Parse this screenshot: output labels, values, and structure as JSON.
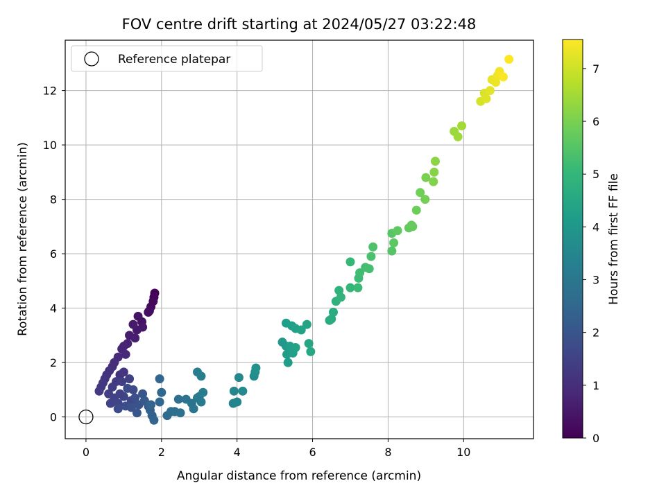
{
  "chart_data": {
    "type": "scatter",
    "title": "FOV centre drift starting at 2024/05/27 03:22:48",
    "xlabel": "Angular distance from reference (arcmin)",
    "ylabel": "Rotation from reference (arcmin)",
    "xlim": [
      -0.55,
      11.85
    ],
    "ylim": [
      -0.8,
      13.85
    ],
    "xticks": [
      0,
      2,
      4,
      6,
      8,
      10
    ],
    "yticks": [
      0,
      2,
      4,
      6,
      8,
      10,
      12
    ],
    "grid": true,
    "legend": {
      "placement": "top-left",
      "entries": [
        "Reference platepar"
      ]
    },
    "reference_point": {
      "x": 0,
      "y": 0,
      "label": "Reference platepar"
    },
    "colorbar": {
      "label": "Hours from first FF file",
      "range": [
        0,
        7.55
      ],
      "ticks": [
        0,
        1,
        2,
        3,
        4,
        5,
        6,
        7
      ],
      "colormap": "viridis",
      "colors": [
        "#440154",
        "#482878",
        "#3e4989",
        "#31688e",
        "#26828e",
        "#1f9e89",
        "#35b779",
        "#6ece58",
        "#b5de2b",
        "#fde725"
      ]
    },
    "series": [
      {
        "points": [
          [
            1.82,
            4.55,
            0.05
          ],
          [
            1.8,
            4.4,
            0.1
          ],
          [
            1.78,
            4.25,
            0.15
          ],
          [
            1.72,
            4.05,
            0.2
          ],
          [
            1.68,
            3.9,
            0.25
          ],
          [
            1.65,
            3.85,
            0.3
          ],
          [
            1.48,
            3.5,
            0.35
          ],
          [
            1.38,
            3.7,
            0.4
          ],
          [
            1.5,
            3.3,
            0.45
          ],
          [
            1.35,
            3.2,
            0.5
          ],
          [
            1.25,
            3.4,
            0.55
          ],
          [
            1.15,
            3.0,
            0.6
          ],
          [
            1.3,
            2.9,
            0.65
          ],
          [
            1.1,
            2.7,
            0.7
          ],
          [
            1.0,
            2.6,
            0.75
          ],
          [
            0.95,
            2.5,
            0.8
          ],
          [
            1.05,
            2.3,
            0.85
          ],
          [
            0.85,
            2.2,
            0.9
          ],
          [
            0.75,
            2.0,
            0.95
          ],
          [
            0.7,
            1.85,
            1.0
          ],
          [
            0.62,
            1.7,
            1.05
          ],
          [
            0.55,
            1.55,
            1.1
          ],
          [
            0.5,
            1.4,
            1.15
          ],
          [
            0.45,
            1.25,
            1.2
          ],
          [
            0.4,
            1.1,
            1.25
          ],
          [
            0.35,
            0.95,
            1.3
          ],
          [
            0.9,
            1.55,
            1.1
          ],
          [
            1.0,
            1.65,
            1.2
          ],
          [
            0.8,
            1.3,
            1.3
          ],
          [
            0.7,
            1.1,
            1.35
          ],
          [
            0.95,
            1.3,
            1.4
          ],
          [
            1.15,
            1.4,
            1.45
          ],
          [
            0.6,
            0.85,
            1.4
          ],
          [
            0.75,
            0.7,
            1.5
          ],
          [
            0.65,
            0.5,
            1.55
          ],
          [
            0.85,
            0.5,
            1.6
          ],
          [
            1.0,
            0.75,
            1.6
          ],
          [
            1.2,
            0.6,
            1.65
          ],
          [
            1.25,
            1.0,
            1.7
          ],
          [
            0.85,
            0.3,
            1.75
          ],
          [
            1.05,
            0.4,
            1.8
          ],
          [
            1.3,
            0.7,
            1.85
          ],
          [
            1.2,
            0.35,
            1.9
          ],
          [
            1.4,
            0.45,
            1.95
          ],
          [
            1.35,
            0.15,
            2.0
          ],
          [
            0.9,
            0.85,
            1.5
          ],
          [
            1.1,
            1.05,
            1.75
          ],
          [
            1.5,
            0.85,
            2.0
          ],
          [
            1.55,
            0.6,
            2.1
          ],
          [
            1.65,
            0.4,
            2.2
          ],
          [
            1.7,
            0.25,
            2.3
          ],
          [
            1.75,
            0.05,
            2.35
          ],
          [
            1.8,
            -0.12,
            2.4
          ],
          [
            1.95,
            1.4,
            2.45
          ],
          [
            1.95,
            0.55,
            2.5
          ],
          [
            2.0,
            0.9,
            2.55
          ],
          [
            1.72,
            0.45,
            2.4
          ],
          [
            2.15,
            0.05,
            2.6
          ],
          [
            2.25,
            0.2,
            2.65
          ],
          [
            2.35,
            0.2,
            2.7
          ],
          [
            2.45,
            0.65,
            2.75
          ],
          [
            2.5,
            0.15,
            2.8
          ],
          [
            2.65,
            0.65,
            2.85
          ],
          [
            2.8,
            0.5,
            2.9
          ],
          [
            2.85,
            0.3,
            2.95
          ],
          [
            2.95,
            0.7,
            3.0
          ],
          [
            3.0,
            0.75,
            3.05
          ],
          [
            3.05,
            0.55,
            3.1
          ],
          [
            3.1,
            0.9,
            3.15
          ],
          [
            2.95,
            1.65,
            3.2
          ],
          [
            3.05,
            1.5,
            3.25
          ],
          [
            3.9,
            0.5,
            3.4
          ],
          [
            4.0,
            0.55,
            3.45
          ],
          [
            3.92,
            0.95,
            3.5
          ],
          [
            4.05,
            1.45,
            3.55
          ],
          [
            4.15,
            0.95,
            3.6
          ],
          [
            4.45,
            1.5,
            3.7
          ],
          [
            4.48,
            1.65,
            3.75
          ],
          [
            4.5,
            1.8,
            3.8
          ],
          [
            5.2,
            2.75,
            4.0
          ],
          [
            5.3,
            2.6,
            4.05
          ],
          [
            5.32,
            2.3,
            4.1
          ],
          [
            5.35,
            2.0,
            4.15
          ],
          [
            5.4,
            2.6,
            4.2
          ],
          [
            5.48,
            2.35,
            4.25
          ],
          [
            5.55,
            2.55,
            4.3
          ],
          [
            5.3,
            3.45,
            4.2
          ],
          [
            5.45,
            3.35,
            4.25
          ],
          [
            5.55,
            3.25,
            4.3
          ],
          [
            5.7,
            3.2,
            4.35
          ],
          [
            5.85,
            3.4,
            4.4
          ],
          [
            5.9,
            2.7,
            4.45
          ],
          [
            5.95,
            2.4,
            4.5
          ],
          [
            6.45,
            3.55,
            4.6
          ],
          [
            6.5,
            3.6,
            4.65
          ],
          [
            6.55,
            3.85,
            4.7
          ],
          [
            6.62,
            4.25,
            4.8
          ],
          [
            6.7,
            4.65,
            4.85
          ],
          [
            6.75,
            4.4,
            4.9
          ],
          [
            7.0,
            4.75,
            5.0
          ],
          [
            7.0,
            5.7,
            5.05
          ],
          [
            7.2,
            4.75,
            5.1
          ],
          [
            7.22,
            5.1,
            5.15
          ],
          [
            7.25,
            5.3,
            5.2
          ],
          [
            7.4,
            5.5,
            5.25
          ],
          [
            7.5,
            5.45,
            5.3
          ],
          [
            7.55,
            5.9,
            5.35
          ],
          [
            7.6,
            6.25,
            5.4
          ],
          [
            8.1,
            6.1,
            5.5
          ],
          [
            8.1,
            6.75,
            5.55
          ],
          [
            8.15,
            6.4,
            5.6
          ],
          [
            8.25,
            6.85,
            5.65
          ],
          [
            8.55,
            6.95,
            5.7
          ],
          [
            8.62,
            7.05,
            5.75
          ],
          [
            8.65,
            7.0,
            5.75
          ],
          [
            8.75,
            7.6,
            5.85
          ],
          [
            8.85,
            8.25,
            5.9
          ],
          [
            8.98,
            8.0,
            5.95
          ],
          [
            9.0,
            8.8,
            6.0
          ],
          [
            9.2,
            8.65,
            6.1
          ],
          [
            9.22,
            9.0,
            6.15
          ],
          [
            9.25,
            9.4,
            6.2
          ],
          [
            9.75,
            10.5,
            6.4
          ],
          [
            9.85,
            10.3,
            6.45
          ],
          [
            9.95,
            10.7,
            6.5
          ],
          [
            10.45,
            11.6,
            7.1
          ],
          [
            10.55,
            11.9,
            7.15
          ],
          [
            10.6,
            11.7,
            7.2
          ],
          [
            10.7,
            12.0,
            7.25
          ],
          [
            10.75,
            12.4,
            7.3
          ],
          [
            10.85,
            12.3,
            7.35
          ],
          [
            10.9,
            12.55,
            7.4
          ],
          [
            10.95,
            12.7,
            7.45
          ],
          [
            11.05,
            12.5,
            7.5
          ],
          [
            11.2,
            13.15,
            7.55
          ]
        ]
      }
    ]
  }
}
